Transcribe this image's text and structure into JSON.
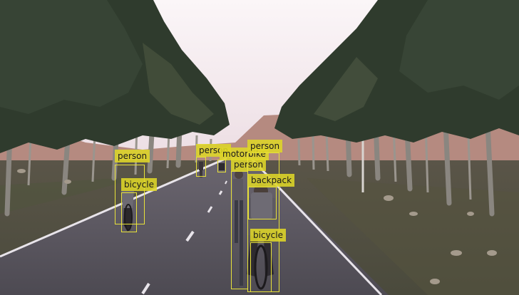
{
  "detections": [
    {
      "label": "person"
    },
    {
      "label": "bicycle"
    },
    {
      "label": "person"
    },
    {
      "label": "motorbike"
    },
    {
      "label": "person"
    },
    {
      "label": "person"
    },
    {
      "label": "backpack"
    },
    {
      "label": "bicycle"
    }
  ],
  "colors": {
    "box": "#e8e23a",
    "label_bg": "#ded628",
    "sky": "#f2e6ea",
    "road": "#55525a",
    "foliage": "#2e3a2c"
  }
}
